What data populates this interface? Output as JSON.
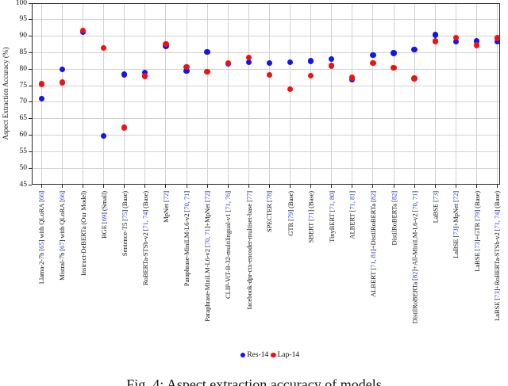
{
  "chart_data": {
    "type": "scatter",
    "title": "",
    "xlabel": "",
    "ylabel": "Aspect Extraction Accuracy (%)",
    "ylim": [
      45,
      100
    ],
    "ytick_step": 5,
    "grid": true,
    "legend_position": "bottom-center",
    "categories": [
      "Llama-2-7b [65] with QLoRA [66]",
      "Mistral-7b [67] with QLoRA [66]",
      "Instruct-DeBERTa (Our Model)",
      "BGE [69] (Small)",
      "Sentence-T5 [75] (Base)",
      "RoBERTa-STSb-v2 [71, 74] (Base)",
      "MpNet [72]",
      "Paraphrase-MiniLM-L6-v2 [70, 71]",
      "Paraphrase-MiniLM-L6-v2 [70, 71]+MpNet [72]",
      "CLIP-ViT-B-32-multilingual-v1 [71, 76]",
      "facebook-dpr-ctx-encoder-multiset-base [77]",
      "SPECTER [78]",
      "GTR [79] (Base)",
      "SBERT [71] (Base)",
      "TinyBERT [71, 80]",
      "ALBERT [71, 81]",
      "ALBERT [71, 81]+DistilRoBERTa [82]",
      "DistilRoBERTa [82]",
      "DistilRoBERTa [82]+All-MiniLM-L6-v2 [70, 71]",
      "LaBSE [73]",
      "LaBSE [73]+MpNet [72]",
      "LaBSE [73]+GTR [79] (Base)",
      "LaBSE [73]+RoBERTa-STSb-v2 [71, 74] (Base)"
    ],
    "series": [
      {
        "name": "Res-14",
        "color": "#1414ee",
        "values": [
          71.0,
          80.0,
          91.2,
          59.8,
          78.4,
          79.0,
          87.0,
          79.4,
          85.2,
          81.6,
          82.1,
          81.9,
          82.1,
          82.5,
          83.1,
          76.8,
          84.3,
          84.9,
          85.9,
          90.4,
          88.3,
          88.5,
          88.3
        ]
      },
      {
        "name": "Lap-14",
        "color": "#f01212",
        "values": [
          75.5,
          76.0,
          91.7,
          86.5,
          62.3,
          77.9,
          87.6,
          80.6,
          79.2,
          81.8,
          83.5,
          78.3,
          73.9,
          78.0,
          81.0,
          77.4,
          81.8,
          80.4,
          77.2,
          88.5,
          89.5,
          87.3,
          89.4
        ]
      }
    ]
  },
  "caption": "Fig. 4: Aspect extraction accuracy of models",
  "colors": {
    "citation_link": "#2e3bd8",
    "gridline": "#d2d2d2",
    "axis": "#2a2a2a"
  }
}
